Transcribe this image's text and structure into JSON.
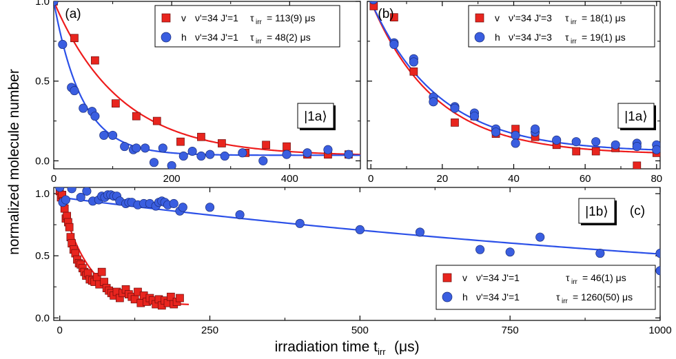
{
  "y_axis_label": "normalized molecule number",
  "x_axis_label_main": "irradiation time t",
  "x_axis_label_sub": "irr",
  "x_axis_label_unit": "(μs)",
  "colors": {
    "red": "#e8251e",
    "blue": "#3a5ee0",
    "red_line": "#ee1c1c",
    "blue_line": "#2b50e8"
  },
  "chart_data": [
    {
      "id": "a",
      "type": "scatter",
      "panel_label": "(a)",
      "state_label": "|1a⟩",
      "xlim": [
        0,
        520
      ],
      "ylim": [
        -0.05,
        1.0
      ],
      "xticks": [
        0,
        200,
        400
      ],
      "yticks": [
        0.0,
        0.5,
        1.0
      ],
      "ytick_labels": [
        "0.0",
        "0.5",
        "1.0"
      ],
      "legend": [
        {
          "marker": "square",
          "color": "red",
          "pol": "v",
          "state": "ν'=34 J'=1",
          "tau_sym": "τ",
          "tau_sub": "irr",
          "tau_val": "= 113(9) μs"
        },
        {
          "marker": "circle",
          "color": "blue",
          "pol": "h",
          "state": "ν'=34 J'=1",
          "tau_sym": "τ",
          "tau_sub": "irr",
          "tau_val": "= 48(2) μs"
        }
      ],
      "series": [
        {
          "name": "v ν'=34 J'=1",
          "marker": "square",
          "color": "red",
          "x": [
            0,
            35,
            70,
            105,
            140,
            175,
            215,
            250,
            285,
            325,
            360,
            395,
            430,
            465,
            500
          ],
          "y": [
            1.0,
            0.77,
            0.63,
            0.36,
            0.28,
            0.25,
            0.12,
            0.15,
            0.11,
            0.05,
            0.1,
            0.09,
            0.04,
            0.04,
            0.04
          ]
        },
        {
          "name": "h ν'=34 J'=1",
          "marker": "circle",
          "color": "blue",
          "x": [
            0,
            15,
            30,
            35,
            50,
            65,
            70,
            85,
            100,
            120,
            135,
            140,
            155,
            170,
            185,
            200,
            220,
            235,
            250,
            265,
            290,
            320,
            355,
            395,
            430,
            465,
            500
          ],
          "y": [
            1.0,
            0.73,
            0.46,
            0.44,
            0.33,
            0.31,
            0.28,
            0.16,
            0.16,
            0.09,
            0.07,
            0.08,
            0.08,
            -0.01,
            0.08,
            -0.03,
            0.03,
            0.06,
            0.03,
            0.04,
            0.03,
            0.05,
            0.0,
            0.04,
            0.05,
            0.07,
            0.04
          ]
        }
      ],
      "fits": [
        {
          "color": "red",
          "tau": 113,
          "offset": 0.03
        },
        {
          "color": "blue",
          "tau": 48,
          "offset": 0.035
        }
      ]
    },
    {
      "id": "b",
      "type": "scatter",
      "panel_label": "(b)",
      "state_label": "|1a⟩",
      "xlim": [
        -1,
        81
      ],
      "ylim": [
        -0.05,
        1.0
      ],
      "xticks": [
        0,
        20,
        40,
        60,
        80
      ],
      "yticks": [
        0.0,
        0.5,
        1.0
      ],
      "ytick_labels": [
        "",
        "",
        ""
      ],
      "legend": [
        {
          "marker": "square",
          "color": "red",
          "pol": "v",
          "state": "ν'=34 J'=3",
          "tau_sym": "τ",
          "tau_sub": "irr",
          "tau_val": "= 18(1) μs"
        },
        {
          "marker": "circle",
          "color": "blue",
          "pol": "h",
          "state": "ν'=34 J'=3",
          "tau_sym": "τ",
          "tau_sub": "irr",
          "tau_val": "= 19(1) μs"
        }
      ],
      "series": [
        {
          "name": "v ν'=34 J'=3",
          "marker": "square",
          "color": "red",
          "x": [
            0.5,
            0.8,
            6.5,
            12,
            17.5,
            23.5,
            29,
            35,
            40.5,
            46,
            52,
            57.5,
            63,
            68.5,
            74.5,
            80
          ],
          "y": [
            1.05,
            0.97,
            0.9,
            0.56,
            0.38,
            0.24,
            0.28,
            0.17,
            0.2,
            0.15,
            0.1,
            0.06,
            0.06,
            0.08,
            -0.03,
            0.05
          ]
        },
        {
          "name": "h ν'=34 J'=3",
          "marker": "circle",
          "color": "blue",
          "x": [
            0.7,
            6.5,
            6.5,
            12,
            12,
            17.5,
            17.5,
            23.5,
            23.5,
            29,
            29,
            35,
            35,
            40.5,
            40.5,
            46,
            46,
            52,
            57.5,
            63,
            68.5,
            74.5,
            74.5,
            80,
            80
          ],
          "y": [
            1.01,
            0.74,
            0.73,
            0.64,
            0.62,
            0.4,
            0.37,
            0.34,
            0.33,
            0.3,
            0.28,
            0.2,
            0.18,
            0.16,
            0.11,
            0.18,
            0.2,
            0.13,
            0.12,
            0.12,
            0.1,
            0.11,
            0.09,
            0.1,
            0.07
          ]
        }
      ],
      "fits": [
        {
          "color": "red",
          "tau": 18,
          "offset": 0.04
        },
        {
          "color": "blue",
          "tau": 19,
          "offset": 0.055
        }
      ]
    },
    {
      "id": "c",
      "type": "scatter",
      "panel_label": "(c)",
      "state_label": "|1b⟩",
      "xlim": [
        -10,
        1000
      ],
      "ylim": [
        -0.02,
        1.05
      ],
      "xticks": [
        0,
        250,
        500,
        750,
        1000
      ],
      "yticks": [
        0.0,
        0.5,
        1.0
      ],
      "ytick_labels": [
        "0.0",
        "0.5",
        "1.0"
      ],
      "legend": [
        {
          "marker": "square",
          "color": "red",
          "pol": "v",
          "state": "ν'=34 J'=1",
          "tau_sym": "τ",
          "tau_sub": "irr",
          "tau_val": "= 46(1) μs"
        },
        {
          "marker": "circle",
          "color": "blue",
          "pol": "h",
          "state": "ν'=34 J'=1",
          "tau_sym": "τ",
          "tau_sub": "irr",
          "tau_val": "= 1260(50) μs"
        }
      ],
      "series": [
        {
          "name": "v ν'=34 J'=1",
          "marker": "square",
          "color": "red",
          "x": [
            0,
            2,
            4,
            6,
            8,
            10,
            12,
            14,
            16,
            18,
            20,
            23,
            26,
            29,
            32,
            35,
            38,
            41,
            44,
            47,
            50,
            54,
            58,
            62,
            66,
            70,
            74,
            78,
            82,
            86,
            90,
            95,
            100,
            105,
            110,
            115,
            120,
            125,
            130,
            135,
            140,
            145,
            150,
            155,
            160,
            165,
            170,
            175,
            180,
            185,
            190,
            195,
            200
          ],
          "y": [
            1.02,
            0.97,
            0.99,
            0.94,
            0.88,
            0.8,
            0.82,
            0.77,
            0.73,
            0.65,
            0.6,
            0.55,
            0.52,
            0.47,
            0.44,
            0.43,
            0.4,
            0.37,
            0.34,
            0.36,
            0.31,
            0.3,
            0.29,
            0.33,
            0.27,
            0.37,
            0.29,
            0.24,
            0.22,
            0.2,
            0.18,
            0.21,
            0.16,
            0.2,
            0.23,
            0.19,
            0.17,
            0.15,
            0.21,
            0.12,
            0.18,
            0.13,
            0.16,
            0.14,
            0.11,
            0.15,
            0.1,
            0.14,
            0.12,
            0.17,
            0.11,
            0.13,
            0.16
          ]
        },
        {
          "name": "h ν'=34 J'=1",
          "marker": "circle",
          "color": "blue",
          "x": [
            0,
            5,
            10,
            20,
            35,
            45,
            55,
            65,
            70,
            75,
            80,
            85,
            90,
            95,
            100,
            110,
            115,
            120,
            130,
            140,
            150,
            160,
            165,
            170,
            175,
            180,
            190,
            200,
            205,
            250,
            300,
            400,
            500,
            600,
            700,
            750,
            800,
            900,
            1000,
            1000
          ],
          "y": [
            1.05,
            0.93,
            0.95,
            1.04,
            0.97,
            1.02,
            0.94,
            0.95,
            0.98,
            0.97,
            0.99,
            0.99,
            0.98,
            0.98,
            0.94,
            0.92,
            0.93,
            0.93,
            0.91,
            0.92,
            0.92,
            0.9,
            0.93,
            0.94,
            0.93,
            0.91,
            0.92,
            0.86,
            0.89,
            0.89,
            0.83,
            0.76,
            0.71,
            0.69,
            0.55,
            0.53,
            0.65,
            0.52,
            0.52,
            0.38
          ]
        }
      ],
      "fits": [
        {
          "color": "red",
          "tau": 46,
          "offset": 0.1,
          "xmax": 215
        },
        {
          "color": "blue",
          "tau": 1260,
          "offset": 0.0,
          "xmin": 0,
          "xmax": 1000,
          "amp": 1.0,
          "start": 0.97
        }
      ]
    }
  ]
}
